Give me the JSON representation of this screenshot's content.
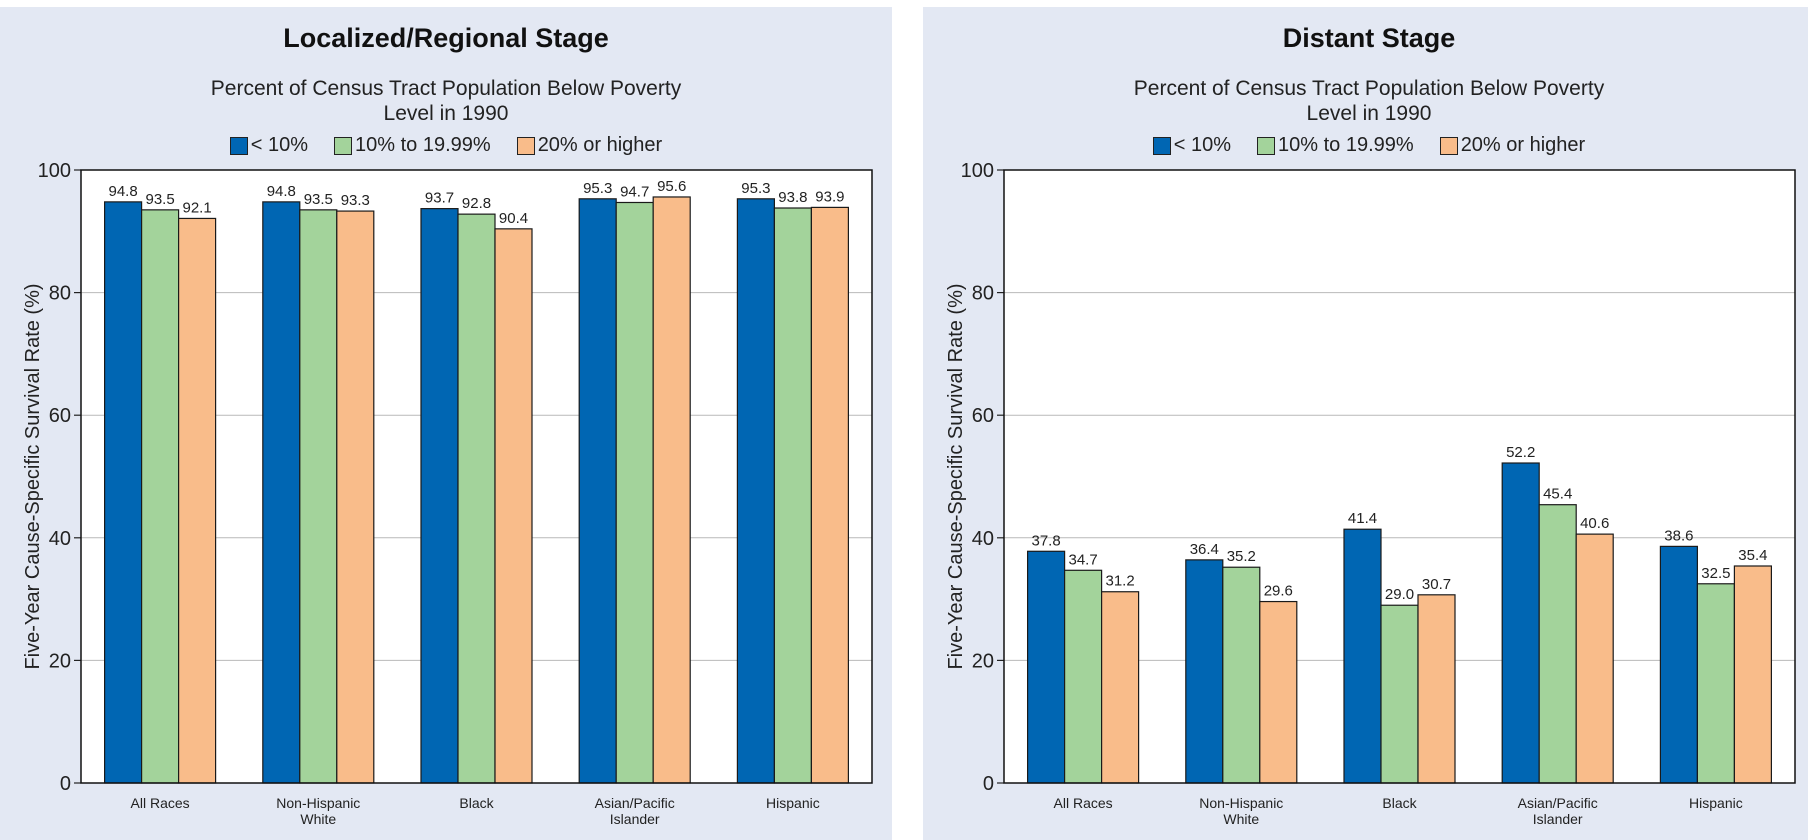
{
  "chart_data": [
    {
      "type": "bar",
      "title": "Localized/Regional Stage",
      "subtitle": "Percent of Census Tract Population Below Poverty\nLevel in 1990",
      "ylabel": "Five-Year Cause-Specific Survival Rate (%)",
      "ylim": [
        0,
        100
      ],
      "yticks": [
        "0",
        "20",
        "40",
        "60",
        "80",
        "100"
      ],
      "grid": true,
      "legend_position": "top",
      "categories": [
        "All Races",
        "Non-Hispanic\nWhite",
        "Black",
        "Asian/Pacific\nIslander",
        "Hispanic"
      ],
      "series": [
        {
          "name": "< 10%",
          "color": "#0066b3",
          "values": [
            94.8,
            94.8,
            93.7,
            95.3,
            95.3
          ],
          "labels": [
            "94.8",
            "94.8",
            "93.7",
            "95.3",
            "95.3"
          ]
        },
        {
          "name": "10% to 19.99%",
          "color": "#a3d39b",
          "values": [
            93.5,
            93.5,
            92.8,
            94.7,
            93.8
          ],
          "labels": [
            "93.5",
            "93.5",
            "92.8",
            "94.7",
            "93.8"
          ]
        },
        {
          "name": "20% or higher",
          "color": "#f9bc8a",
          "values": [
            92.1,
            93.3,
            90.4,
            95.6,
            93.9
          ],
          "labels": [
            "92.1",
            "93.3",
            "90.4",
            "95.6",
            "93.9"
          ]
        }
      ]
    },
    {
      "type": "bar",
      "title": "Distant Stage",
      "subtitle": "Percent of Census Tract Population Below Poverty\nLevel in 1990",
      "ylabel": "Five-Year Cause-Specific Survival Rate (%)",
      "ylim": [
        0,
        100
      ],
      "yticks": [
        "0",
        "20",
        "40",
        "60",
        "80",
        "100"
      ],
      "grid": true,
      "legend_position": "top",
      "categories": [
        "All Races",
        "Non-Hispanic\nWhite",
        "Black",
        "Asian/Pacific\nIslander",
        "Hispanic"
      ],
      "series": [
        {
          "name": "< 10%",
          "color": "#0066b3",
          "values": [
            37.8,
            36.4,
            41.4,
            52.2,
            38.6
          ],
          "labels": [
            "37.8",
            "36.4",
            "41.4",
            "52.2",
            "38.6"
          ]
        },
        {
          "name": "10% to 19.99%",
          "color": "#a3d39b",
          "values": [
            34.7,
            35.2,
            29.0,
            45.4,
            32.5
          ],
          "labels": [
            "34.7",
            "35.2",
            "29.0",
            "45.4",
            "32.5"
          ]
        },
        {
          "name": "20% or higher",
          "color": "#f9bc8a",
          "values": [
            31.2,
            29.6,
            30.7,
            40.6,
            35.4
          ],
          "labels": [
            "31.2",
            "29.6",
            "30.7",
            "40.6",
            "35.4"
          ]
        }
      ]
    }
  ]
}
